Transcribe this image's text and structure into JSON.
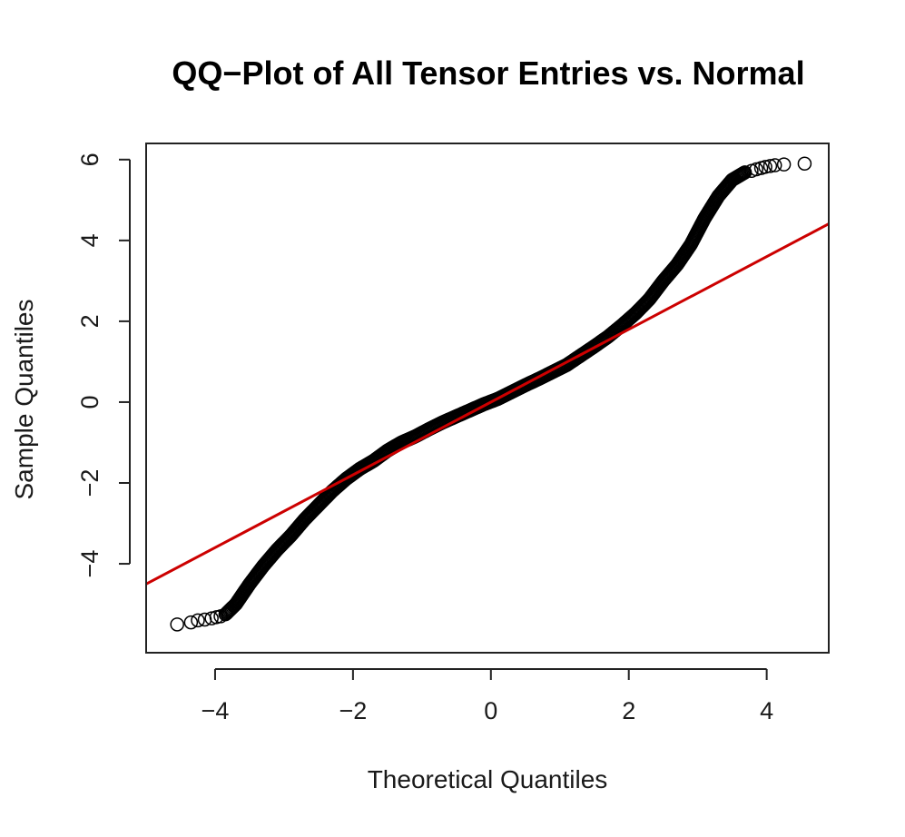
{
  "chart_data": {
    "type": "scatter",
    "title": "QQ−Plot of All Tensor Entries vs. Normal",
    "xlabel": "Theoretical Quantiles",
    "ylabel": "Sample Quantiles",
    "xlim": [
      -5,
      4.9
    ],
    "ylim": [
      -6.2,
      6.4
    ],
    "xticks": [
      -4,
      -2,
      0,
      2,
      4
    ],
    "yticks": [
      -4,
      -2,
      0,
      2,
      4,
      6
    ],
    "xtick_labels": [
      "−4",
      "−2",
      "0",
      "2",
      "4"
    ],
    "ytick_labels": [
      "−4",
      "−2",
      "0",
      "2",
      "4",
      "6"
    ],
    "grid": false,
    "point_style": "open-circle",
    "point_color": "#000000",
    "reference_line_color": "#cc0000",
    "reference_line": {
      "intercept": 0.0,
      "slope": 0.9
    },
    "sample_curve": {
      "x": [
        -3.85,
        -3.7,
        -3.5,
        -3.3,
        -3.1,
        -2.9,
        -2.7,
        -2.5,
        -2.3,
        -2.1,
        -1.9,
        -1.7,
        -1.5,
        -1.3,
        -1.1,
        -0.9,
        -0.7,
        -0.5,
        -0.3,
        -0.1,
        0.1,
        0.3,
        0.5,
        0.7,
        0.9,
        1.1,
        1.3,
        1.5,
        1.7,
        1.9,
        2.1,
        2.3,
        2.5,
        2.7,
        2.9,
        3.1,
        3.3,
        3.5,
        3.7
      ],
      "y": [
        -5.25,
        -5.0,
        -4.5,
        -4.05,
        -3.65,
        -3.3,
        -2.9,
        -2.55,
        -2.2,
        -1.9,
        -1.65,
        -1.45,
        -1.2,
        -1.0,
        -0.85,
        -0.67,
        -0.5,
        -0.35,
        -0.2,
        -0.05,
        0.08,
        0.25,
        0.42,
        0.58,
        0.75,
        0.92,
        1.15,
        1.38,
        1.62,
        1.9,
        2.2,
        2.55,
        3.0,
        3.4,
        3.9,
        4.55,
        5.1,
        5.5,
        5.7
      ]
    },
    "tail_points": {
      "x": [
        -4.55,
        -4.35,
        -4.25,
        -4.15,
        -4.05,
        -3.98,
        -3.92,
        3.78,
        3.85,
        3.92,
        3.98,
        4.05,
        4.12,
        4.25,
        4.55
      ],
      "y": [
        -5.5,
        -5.45,
        -5.4,
        -5.38,
        -5.35,
        -5.32,
        -5.3,
        5.72,
        5.76,
        5.79,
        5.82,
        5.84,
        5.86,
        5.88,
        5.9
      ]
    }
  }
}
